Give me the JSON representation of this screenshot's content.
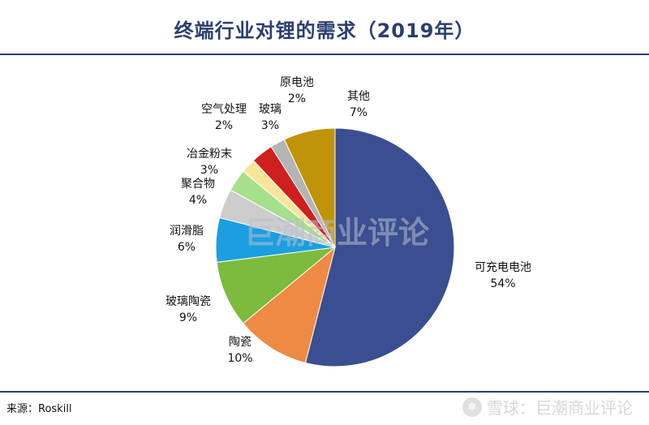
{
  "title": "终端行业对锂的需求（2019年）",
  "source": "来源：Roskill",
  "watermark": "巨潮商业评论",
  "footer": {
    "brand": "雪球：巨潮商业评论"
  },
  "chart_data": {
    "type": "pie",
    "title": "终端行业对锂的需求（2019年）",
    "start_angle_deg": 0,
    "direction": "clockwise",
    "slices": [
      {
        "name": "可充电电池",
        "value": 54,
        "label": "54%",
        "color": "#3a4e91"
      },
      {
        "name": "陶瓷",
        "value": 10,
        "label": "10%",
        "color": "#ee8a43"
      },
      {
        "name": "玻璃陶瓷",
        "value": 9,
        "label": "9%",
        "color": "#7cbb3e"
      },
      {
        "name": "润滑脂",
        "value": 6,
        "label": "6%",
        "color": "#1b9fe0"
      },
      {
        "name": "聚合物",
        "value": 4,
        "label": "4%",
        "color": "#cdcdcd"
      },
      {
        "name": "冶金粉末",
        "value": 3,
        "label": "3%",
        "color": "#a7e08a"
      },
      {
        "name": "空气处理",
        "value": 2,
        "label": "2%",
        "color": "#f9e59a"
      },
      {
        "name": "玻璃",
        "value": 3,
        "label": "3%",
        "color": "#d01f1f"
      },
      {
        "name": "原电池",
        "value": 2,
        "label": "2%",
        "color": "#b4b4b4"
      },
      {
        "name": "其他",
        "value": 7,
        "label": "7%",
        "color": "#c09408"
      }
    ]
  }
}
